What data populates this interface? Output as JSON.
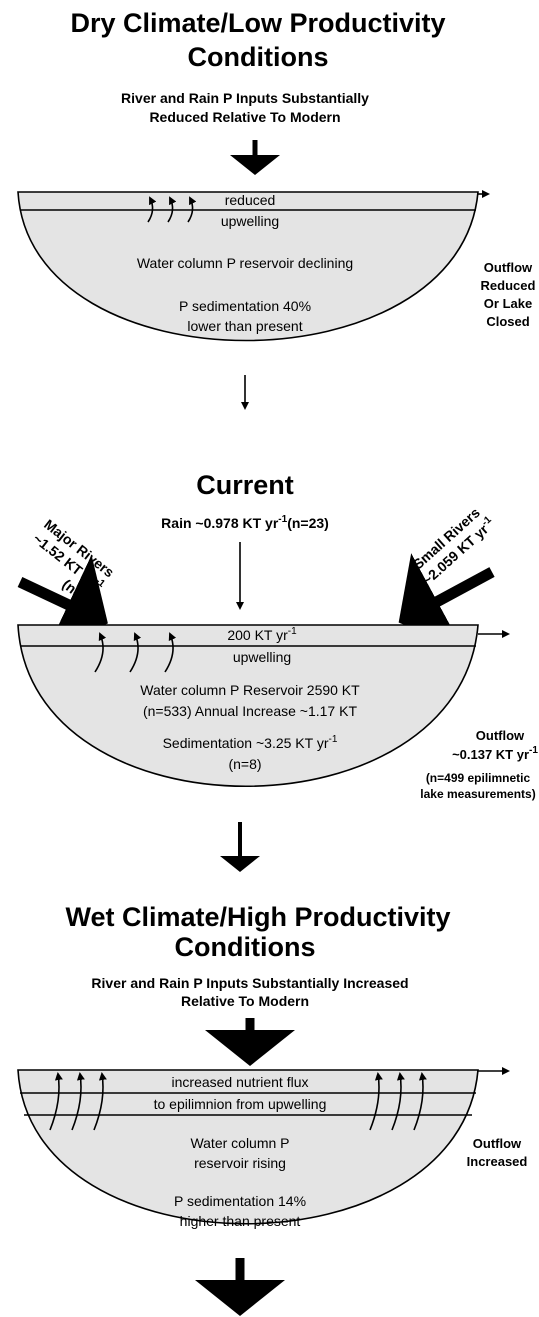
{
  "panels": [
    {
      "title": [
        "Dry Climate/Low Productivity",
        "Conditions"
      ],
      "subtitle": [
        "River and Rain P Inputs Substantially",
        "Reduced Relative To Modern"
      ],
      "upper_layer": [
        "reduced",
        "upwelling"
      ],
      "lake": [
        "Water column P reservoir  declining",
        "P sedimentation 40%",
        "lower than present"
      ],
      "outflow": [
        "Outflow",
        "Reduced",
        "Or Lake",
        "Closed"
      ]
    },
    {
      "title": [
        "Current"
      ],
      "rain": [
        "Rain ~0.978 KT yr",
        "-1",
        "(n=23)"
      ],
      "major_rivers": [
        "Major Rivers",
        "~1.52 KT yr",
        "-1",
        "(n=15)"
      ],
      "small_rivers": [
        "Small Rivers",
        "~2.059 KT yr",
        "-1"
      ],
      "upper_layer": [
        "200 KT yr",
        "-1",
        "upwelling"
      ],
      "lake": [
        "Water column P Reservoir 2590 KT",
        "(n=533) Annual Increase ~1.17 KT",
        "Sedimentation ~3.25 KT yr",
        "-1",
        "(n=8)"
      ],
      "outflow": [
        "Outflow",
        "~0.137 KT yr",
        "-1",
        "(n=499 epilimnetic",
        "lake measurements)"
      ]
    },
    {
      "title": [
        "Wet Climate/High Productivity",
        "Conditions"
      ],
      "subtitle": [
        "River and Rain P Inputs Substantially Increased",
        "Relative To Modern"
      ],
      "upper_layer": [
        "increased nutrient flux",
        "to epilimnion from upwelling"
      ],
      "lake": [
        "Water column P",
        "reservoir  rising",
        "P sedimentation 14%",
        "higher than present"
      ],
      "outflow": [
        "Outflow",
        "Increased"
      ]
    }
  ]
}
